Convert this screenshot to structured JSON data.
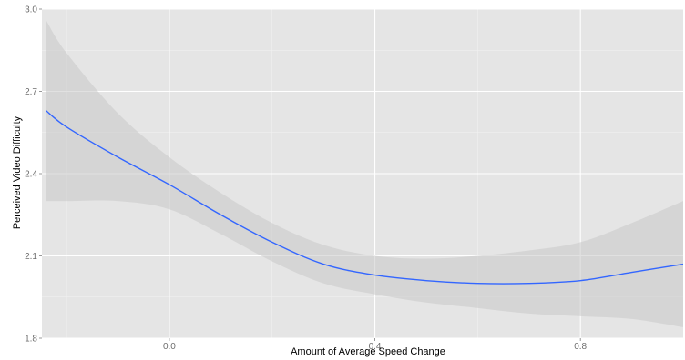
{
  "chart_data": {
    "type": "line",
    "title": "",
    "xlabel": "Amount of Average Speed Change",
    "ylabel": "Perceived Video Difficulty",
    "xlim": [
      -0.248,
      1.0
    ],
    "ylim": [
      1.8,
      3.0
    ],
    "x_ticks": [
      0.0,
      0.4,
      0.8
    ],
    "x_tick_labels": [
      "0.0",
      "0.4",
      "0.8"
    ],
    "y_ticks": [
      1.8,
      2.1,
      2.4,
      2.7,
      3.0
    ],
    "y_tick_labels": [
      "1.8",
      "2.1",
      "2.4",
      "2.7",
      "3.0"
    ],
    "grid": true,
    "legend": "none",
    "series": [
      {
        "x": [
          -0.24,
          -0.2,
          -0.1,
          0.0,
          0.1,
          0.2,
          0.3,
          0.4,
          0.5,
          0.6,
          0.7,
          0.8,
          0.9,
          1.0
        ],
        "y": [
          2.63,
          2.57,
          2.46,
          2.36,
          2.25,
          2.15,
          2.07,
          2.03,
          2.01,
          2.0,
          2.0,
          2.01,
          2.04,
          2.07
        ],
        "lower": [
          2.3,
          2.3,
          2.3,
          2.27,
          2.18,
          2.08,
          2.0,
          1.96,
          1.93,
          1.91,
          1.89,
          1.88,
          1.87,
          1.84
        ],
        "upper": [
          2.96,
          2.84,
          2.62,
          2.46,
          2.33,
          2.22,
          2.14,
          2.1,
          2.09,
          2.1,
          2.12,
          2.15,
          2.22,
          2.3
        ]
      }
    ],
    "colors": {
      "line": "#3366ff",
      "ribbon": "#c8c8c8",
      "panel": "#e5e5e5",
      "grid_major": "#ffffff",
      "grid_minor": "#f2f2f2",
      "tick_label": "#6e6e6e",
      "axis_title": "#000000"
    }
  }
}
